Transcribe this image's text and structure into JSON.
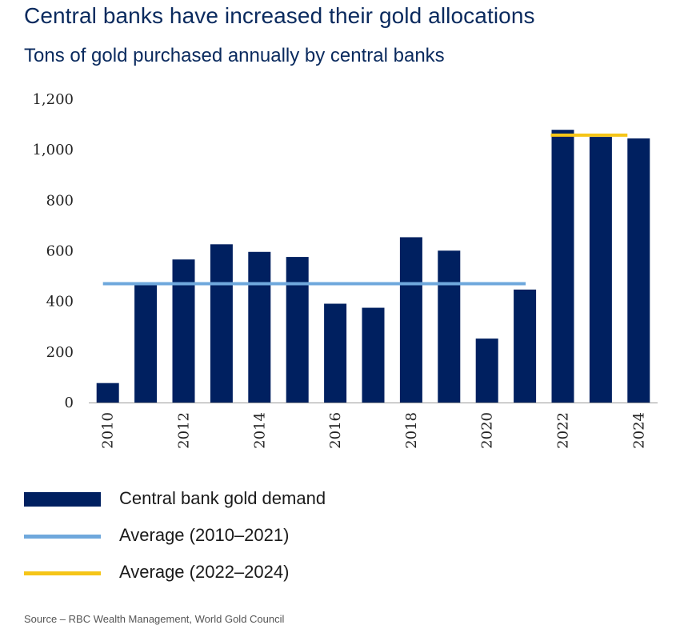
{
  "header": {
    "title": "Central banks have increased their gold allocations",
    "subtitle": "Tons of gold purchased annually by central banks"
  },
  "legend": {
    "items": [
      {
        "label": "Central bank gold demand",
        "color": "#002060",
        "kind": "bar"
      },
      {
        "label": "Average (2010–2021)",
        "color": "#6fa8dc",
        "kind": "line"
      },
      {
        "label": "Average (2022–2024)",
        "color": "#f5c518",
        "kind": "line"
      }
    ]
  },
  "footer": {
    "source": "Source – RBC Wealth Management, World Gold Council"
  },
  "chart_data": {
    "type": "bar",
    "categories": [
      2010,
      2011,
      2012,
      2013,
      2014,
      2015,
      2016,
      2017,
      2018,
      2019,
      2020,
      2021,
      2022,
      2023,
      2024
    ],
    "x_tick_labels": [
      "2010",
      "2012",
      "2014",
      "2016",
      "2018",
      "2020",
      "2022",
      "2024"
    ],
    "series": [
      {
        "name": "Central bank gold demand",
        "values": [
          77,
          473,
          566,
          626,
          596,
          576,
          391,
          375,
          654,
          601,
          253,
          447,
          1079,
          1051,
          1045
        ],
        "color": "#002060"
      }
    ],
    "reference_lines": [
      {
        "name": "Average (2010–2021)",
        "value": 470,
        "x_start": 2010,
        "x_end": 2021,
        "color": "#6fa8dc"
      },
      {
        "name": "Average (2022–2024)",
        "value": 1058,
        "x_start": 2022,
        "x_end": 2024,
        "color": "#f5c518"
      }
    ],
    "y_tick_labels": [
      "0",
      "200",
      "400",
      "600",
      "800",
      "1,000",
      "1,200"
    ],
    "y_ticks": [
      0,
      200,
      400,
      600,
      800,
      1000,
      1200
    ],
    "ylim": [
      0,
      1200
    ],
    "title": "Central banks have increased their gold allocations",
    "subtitle": "Tons of gold purchased annually by central banks",
    "xlabel": "",
    "ylabel": "",
    "grid": false,
    "legend_position": "bottom"
  }
}
